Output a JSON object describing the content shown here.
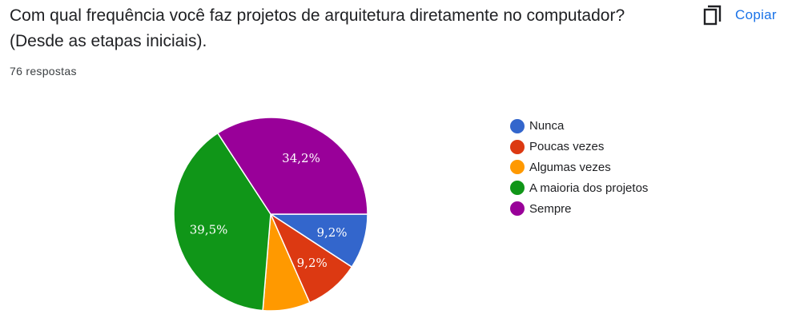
{
  "question": {
    "title": "Com qual frequência você faz projetos de arquitetura diretamente no computador? (Desde as etapas iniciais).",
    "response_count": "76 respostas"
  },
  "copy_button": {
    "label": "Copiar",
    "icon": "copy-icon",
    "color": "#1a73e8"
  },
  "chart_data": {
    "type": "pie",
    "categories": [
      "Nunca",
      "Poucas vezes",
      "Algumas vezes",
      "A maioria dos projetos",
      "Sempre"
    ],
    "values": [
      9.2,
      9.2,
      7.9,
      39.5,
      34.2
    ],
    "labels": [
      "9,2%",
      "9,2%",
      "",
      "39,5%",
      "34,2%"
    ],
    "colors": [
      "#3366cc",
      "#dc3912",
      "#ff9900",
      "#109618",
      "#990099"
    ],
    "legend_position": "right"
  }
}
